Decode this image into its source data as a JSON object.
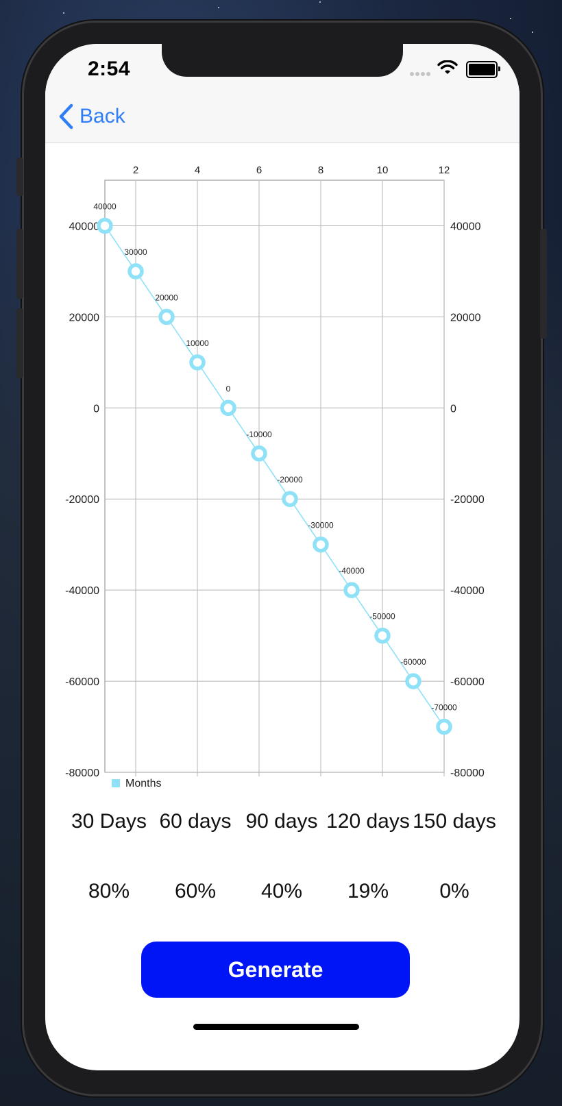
{
  "status_bar": {
    "time": "2:54"
  },
  "nav": {
    "back_label": "Back"
  },
  "chart_data": {
    "type": "line",
    "x": [
      1,
      2,
      3,
      4,
      5,
      6,
      7,
      8,
      9,
      10,
      11,
      12
    ],
    "series": [
      {
        "name": "Months",
        "values": [
          40000,
          30000,
          20000,
          10000,
          0,
          -10000,
          -20000,
          -30000,
          -40000,
          -50000,
          -60000,
          -70000
        ],
        "color": "#8fe1f7"
      }
    ],
    "point_labels": [
      "40000",
      "30000",
      "20000",
      "10000",
      "0",
      "-10000",
      "-20000",
      "-30000",
      "-40000",
      "-50000",
      "-60000",
      "-70000"
    ],
    "x_ticks": [
      2,
      4,
      6,
      8,
      10,
      12
    ],
    "y_ticks": [
      40000,
      20000,
      0,
      -20000,
      -40000,
      -60000,
      -80000
    ],
    "xlim": [
      1,
      12
    ],
    "ylim": [
      -80000,
      50000
    ],
    "x_axis_position": "top",
    "y_axes": "left-and-right",
    "grid": true,
    "legend": {
      "label": "Months",
      "placement": "bottom-left"
    },
    "title": "",
    "xlabel": "",
    "ylabel": ""
  },
  "periods": {
    "days": [
      "30 Days",
      "60 days",
      "90 days",
      "120 days",
      "150 days"
    ],
    "percents": [
      "80%",
      "60%",
      "40%",
      "19%",
      "0%"
    ]
  },
  "actions": {
    "generate_label": "Generate"
  },
  "colors": {
    "accent": "#2f7ef6",
    "button": "#0015f5",
    "series": "#8fe1f7",
    "grid": "#b5b5b5"
  }
}
